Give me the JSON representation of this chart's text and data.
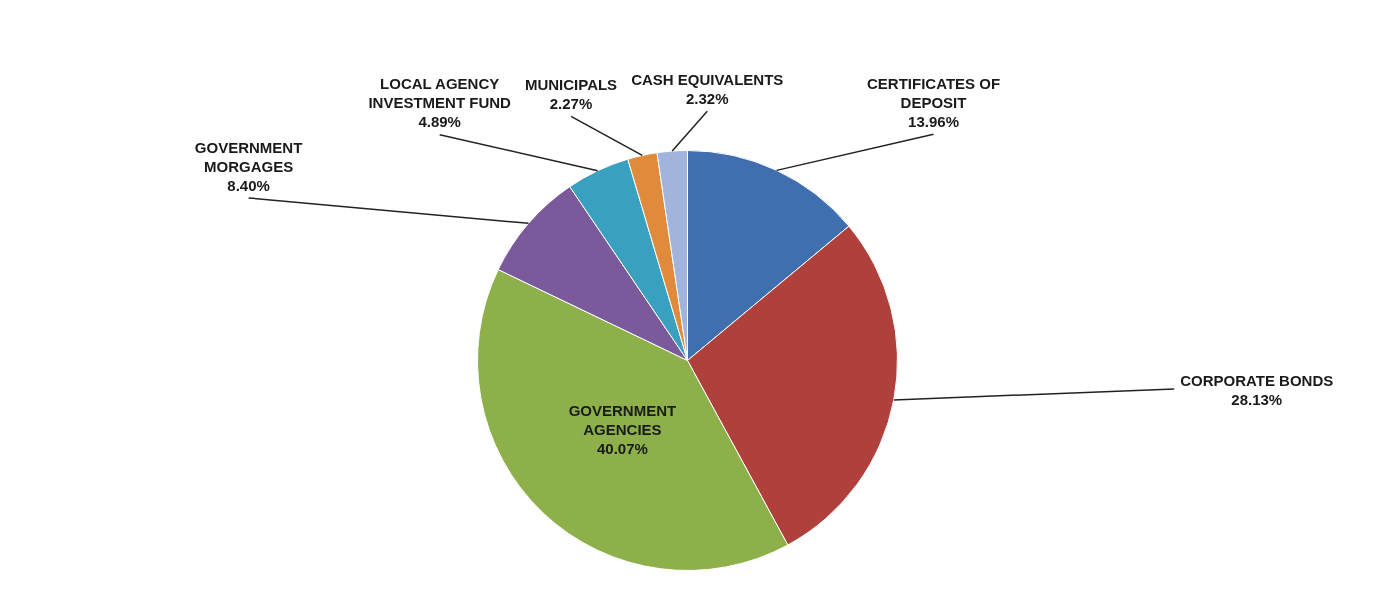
{
  "chart_data": {
    "type": "pie",
    "categories": [
      "CERTIFICATES OF DEPOSIT",
      "CORPORATE BONDS",
      "GOVERNMENT AGENCIES",
      "GOVERNMENT MORGAGES",
      "LOCAL AGENCY INVESTMENT FUND",
      "MUNICIPALS",
      "CASH EQUIVALENTS"
    ],
    "values": [
      13.96,
      28.13,
      40.07,
      8.4,
      4.89,
      2.27,
      2.32
    ],
    "value_labels": [
      "13.96%",
      "28.13%",
      "40.07%",
      "8.40%",
      "4.89%",
      "2.27%",
      "2.32%"
    ],
    "colors": [
      "#3f6fae",
      "#b0403c",
      "#8db04a",
      "#7a5a9a",
      "#3aa0c0",
      "#e08a3c",
      "#a0b4dc"
    ]
  }
}
